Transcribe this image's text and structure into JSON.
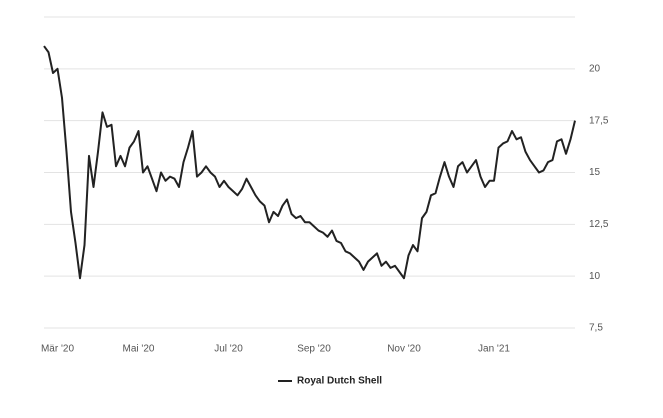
{
  "chart_data": {
    "type": "line",
    "categories": [
      null,
      null,
      null,
      "Mär '20",
      null,
      null,
      null,
      null,
      null,
      null,
      null,
      null,
      null,
      null,
      null,
      null,
      null,
      null,
      null,
      null,
      null,
      "Mai '20",
      null,
      null,
      null,
      null,
      null,
      null,
      null,
      null,
      null,
      null,
      null,
      null,
      null,
      null,
      null,
      null,
      null,
      null,
      null,
      "Jul '20",
      null,
      null,
      null,
      null,
      null,
      null,
      null,
      null,
      null,
      null,
      null,
      null,
      null,
      null,
      null,
      null,
      null,
      null,
      "Sep '20",
      null,
      null,
      null,
      null,
      null,
      null,
      null,
      null,
      null,
      null,
      null,
      null,
      null,
      null,
      null,
      null,
      null,
      null,
      null,
      "Nov '20",
      null,
      null,
      null,
      null,
      null,
      null,
      null,
      null,
      null,
      null,
      null,
      null,
      null,
      null,
      null,
      null,
      null,
      null,
      null,
      "Jan '21",
      null,
      null,
      null,
      null,
      null,
      null,
      null,
      null,
      null,
      null,
      null,
      null,
      null,
      null,
      null,
      null,
      null,
      null
    ],
    "series": [
      {
        "name": "Royal Dutch Shell",
        "color": "#222222",
        "values": [
          21.1,
          20.8,
          19.8,
          20.0,
          18.6,
          16.0,
          13.1,
          11.6,
          9.9,
          11.5,
          15.8,
          14.3,
          16.0,
          17.9,
          17.2,
          17.3,
          15.3,
          15.8,
          15.3,
          16.2,
          16.5,
          17.0,
          15.0,
          15.3,
          14.7,
          14.1,
          15.0,
          14.6,
          14.8,
          14.7,
          14.3,
          15.5,
          16.2,
          17.0,
          14.8,
          15.0,
          15.3,
          15.0,
          14.8,
          14.3,
          14.6,
          14.3,
          14.1,
          13.9,
          14.2,
          14.7,
          14.3,
          13.9,
          13.6,
          13.4,
          12.6,
          13.1,
          12.9,
          13.4,
          13.7,
          13.0,
          12.8,
          12.9,
          12.6,
          12.6,
          12.4,
          12.2,
          12.1,
          11.9,
          12.2,
          11.7,
          11.6,
          11.2,
          11.1,
          10.9,
          10.7,
          10.3,
          10.7,
          10.9,
          11.1,
          10.5,
          10.7,
          10.4,
          10.5,
          10.2,
          9.9,
          11.0,
          11.5,
          11.2,
          12.8,
          13.1,
          13.9,
          14.0,
          14.8,
          15.5,
          14.8,
          14.3,
          15.3,
          15.5,
          15.0,
          15.3,
          15.6,
          14.8,
          14.3,
          14.6,
          14.6,
          16.2,
          16.4,
          16.5,
          17.0,
          16.6,
          16.7,
          16.0,
          15.6,
          15.3,
          15.0,
          15.1,
          15.5,
          15.6,
          16.5,
          16.6,
          15.9,
          16.6,
          17.5
        ]
      }
    ],
    "ylim": [
      7.5,
      22.5
    ],
    "yticks": [
      {
        "value": 7.5,
        "label": "7,5"
      },
      10,
      {
        "value": 12.5,
        "label": "12,5"
      },
      15,
      {
        "value": 17.5,
        "label": "17,5"
      },
      20
    ],
    "grid": true
  }
}
